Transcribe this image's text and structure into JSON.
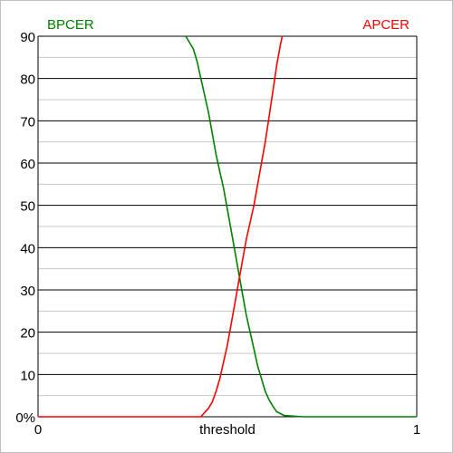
{
  "chart_data": {
    "type": "line",
    "title": "",
    "xlabel": "threshold",
    "ylabel": "",
    "xlim": [
      0,
      1
    ],
    "ylim": [
      0,
      90
    ],
    "x_ticks": [
      {
        "value": 0,
        "label": "0"
      },
      {
        "value": 1,
        "label": "1"
      }
    ],
    "y_ticks": [
      {
        "value": 0,
        "label": "0%"
      },
      {
        "value": 10,
        "label": "10"
      },
      {
        "value": 20,
        "label": "20"
      },
      {
        "value": 30,
        "label": "30"
      },
      {
        "value": 40,
        "label": "40"
      },
      {
        "value": 50,
        "label": "50"
      },
      {
        "value": 60,
        "label": "60"
      },
      {
        "value": 70,
        "label": "70"
      },
      {
        "value": 80,
        "label": "80"
      },
      {
        "value": 90,
        "label": "90"
      }
    ],
    "grid": {
      "major": 10,
      "minor": 5
    },
    "legend": "top-left and top-right labels",
    "series": [
      {
        "name": "BPCER",
        "color": "#008000",
        "points": [
          [
            0.39,
            90
          ],
          [
            0.41,
            87
          ],
          [
            0.42,
            84
          ],
          [
            0.43,
            80
          ],
          [
            0.44,
            76
          ],
          [
            0.45,
            72
          ],
          [
            0.46,
            67
          ],
          [
            0.47,
            62
          ],
          [
            0.48,
            58
          ],
          [
            0.49,
            54
          ],
          [
            0.5,
            49
          ],
          [
            0.51,
            44
          ],
          [
            0.52,
            39
          ],
          [
            0.53,
            34
          ],
          [
            0.54,
            29
          ],
          [
            0.55,
            24
          ],
          [
            0.56,
            20
          ],
          [
            0.57,
            16
          ],
          [
            0.58,
            12
          ],
          [
            0.59,
            9
          ],
          [
            0.6,
            6
          ],
          [
            0.61,
            4
          ],
          [
            0.62,
            2.5
          ],
          [
            0.63,
            1.2
          ],
          [
            0.65,
            0.3
          ],
          [
            0.7,
            0
          ],
          [
            1,
            0
          ]
        ]
      },
      {
        "name": "APCER",
        "color": "#ff0000",
        "points": [
          [
            0,
            0
          ],
          [
            0.43,
            0
          ],
          [
            0.44,
            1
          ],
          [
            0.45,
            2
          ],
          [
            0.46,
            3.5
          ],
          [
            0.47,
            6
          ],
          [
            0.48,
            9
          ],
          [
            0.49,
            13
          ],
          [
            0.5,
            17
          ],
          [
            0.51,
            22
          ],
          [
            0.52,
            27
          ],
          [
            0.53,
            32
          ],
          [
            0.54,
            37
          ],
          [
            0.55,
            42
          ],
          [
            0.56,
            46
          ],
          [
            0.57,
            50
          ],
          [
            0.58,
            55
          ],
          [
            0.59,
            60
          ],
          [
            0.6,
            65
          ],
          [
            0.61,
            71
          ],
          [
            0.62,
            77
          ],
          [
            0.63,
            83
          ],
          [
            0.64,
            88
          ],
          [
            0.645,
            90
          ]
        ]
      }
    ]
  }
}
